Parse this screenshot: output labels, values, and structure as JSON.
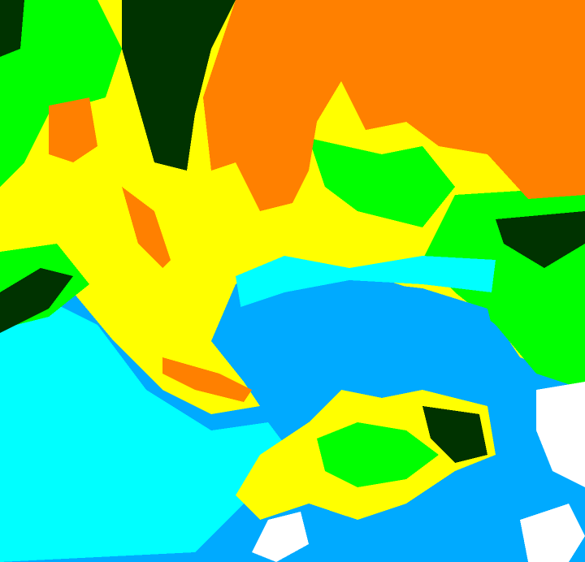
{
  "image": {
    "palette": {
      "orange": "#ff8000",
      "yellow": "#ffff00",
      "green": "#00ff00",
      "dark_green": "#003300",
      "cyan": "#00ffff",
      "blue": "#00aaff",
      "white": "#ffffff"
    }
  }
}
